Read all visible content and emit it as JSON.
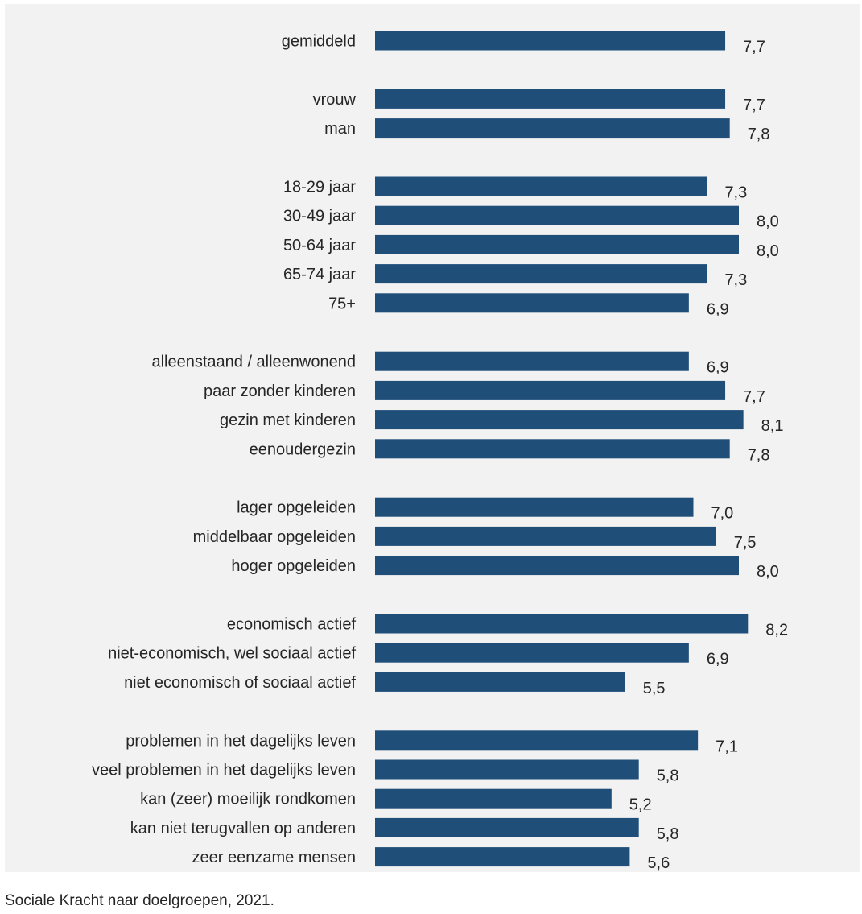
{
  "chart_data": {
    "type": "bar",
    "orientation": "horizontal",
    "bar_color": "#1f4e79",
    "xlim": [
      0,
      10
    ],
    "grid": false,
    "groups": [
      {
        "categories": [
          "gemiddeld"
        ],
        "values": [
          7.7
        ],
        "labels": [
          "7,7"
        ]
      },
      {
        "categories": [
          "vrouw",
          "man"
        ],
        "values": [
          7.7,
          7.8
        ],
        "labels": [
          "7,7",
          "7,8"
        ]
      },
      {
        "categories": [
          "18-29 jaar",
          "30-49 jaar",
          "50-64 jaar",
          "65-74 jaar",
          "75+"
        ],
        "values": [
          7.3,
          8.0,
          8.0,
          7.3,
          6.9
        ],
        "labels": [
          "7,3",
          "8,0",
          "8,0",
          "7,3",
          "6,9"
        ]
      },
      {
        "categories": [
          "alleenstaand / alleenwonend",
          "paar zonder kinderen",
          "gezin met kinderen",
          "eenoudergezin"
        ],
        "values": [
          6.9,
          7.7,
          8.1,
          7.8
        ],
        "labels": [
          "6,9",
          "7,7",
          "8,1",
          "7,8"
        ]
      },
      {
        "categories": [
          "lager opgeleiden",
          "middelbaar opgeleiden",
          "hoger opgeleiden"
        ],
        "values": [
          7.0,
          7.5,
          8.0
        ],
        "labels": [
          "7,0",
          "7,5",
          "8,0"
        ]
      },
      {
        "categories": [
          "economisch actief",
          "niet-economisch, wel sociaal actief",
          "niet economisch of sociaal actief"
        ],
        "values": [
          8.2,
          6.9,
          5.5
        ],
        "labels": [
          "8,2",
          "6,9",
          "5,5"
        ]
      },
      {
        "categories": [
          "problemen in het dagelijks leven",
          "veel problemen in het dagelijks leven",
          "kan (zeer) moeilijk rondkomen",
          "kan niet terugvallen op anderen",
          "zeer eenzame mensen"
        ],
        "values": [
          7.1,
          5.8,
          5.2,
          5.8,
          5.6
        ],
        "labels": [
          "7,1",
          "5,8",
          "5,2",
          "5,8",
          "5,6"
        ]
      }
    ]
  },
  "caption": "Sociale Kracht naar doelgroepen, 2021."
}
